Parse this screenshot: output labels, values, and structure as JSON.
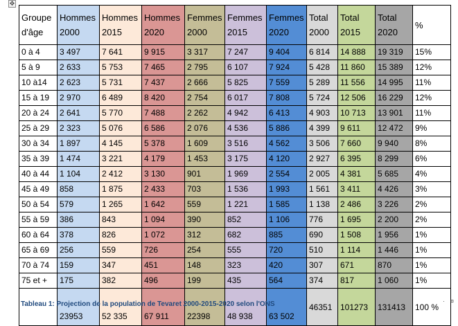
{
  "table": {
    "headers": [
      "Groupe d'âge",
      "Hommes 2000",
      "Hommes 2015",
      "Hommes 2020",
      "Femmes 2000",
      "Femmes 2015",
      "Femmes 2020",
      "Total 2000",
      "Total 2015",
      "Total 2020",
      "%"
    ],
    "column_colors": [
      "#ffffff",
      "#c5d9f1",
      "#fde9d9",
      "#da9694",
      "#c4bd97",
      "#ccc0da",
      "#538dd5",
      "#d9d9d9",
      "#c4d79b",
      "#a6a6a6",
      "#ffffff"
    ],
    "rows": [
      [
        "0 à 4",
        "3 497",
        "7 641",
        "9 915",
        "3 317",
        "7 247",
        "9 404",
        "6 814",
        "14 888",
        "19 319",
        "15%"
      ],
      [
        "5 à 9",
        "2 633",
        "5 753",
        "7 465",
        "2 795",
        "6 107",
        "7 924",
        "5 428",
        "11 860",
        "15 389",
        "12%"
      ],
      [
        "10 à14",
        "2 623",
        "5 731",
        "7 437",
        "2 666",
        "5 825",
        "7 559",
        "5 289",
        "11 556",
        "14 995",
        "11%"
      ],
      [
        "15 à 19",
        "2 970",
        "6 489",
        "8 420",
        "2 754",
        "6 017",
        "7 808",
        "5 724",
        "12 506",
        "16 229",
        "12%"
      ],
      [
        "20 à 24",
        "2 641",
        "5 770",
        "7 488",
        "2 262",
        "4 942",
        "6 413",
        "4 903",
        "10 713",
        "13 901",
        "11%"
      ],
      [
        "25 à 29",
        "2 323",
        "5 076",
        "6 586",
        "2 076",
        "4 536",
        "5 886",
        "4 399",
        "9 611",
        "12 472",
        "9%"
      ],
      [
        "30 à 34",
        "1 897",
        "4 145",
        "5 378",
        "1 609",
        "3 516",
        "4 562",
        "3 506",
        "7 660",
        "9 940",
        "8%"
      ],
      [
        "35 à 39",
        "1 474",
        "3 221",
        "4 179",
        "1 453",
        "3 175",
        "4 120",
        "2 927",
        "6 395",
        "8 299",
        "6%"
      ],
      [
        "40 à 44",
        "1 104",
        "2 412",
        "3 130",
        "901",
        "1 969",
        "2 554",
        "2 005",
        "4 381",
        "5 685",
        "4%"
      ],
      [
        "45 à 49",
        "858",
        "1 875",
        "2 433",
        "703",
        "1 536",
        "1 993",
        "1 561",
        "3 411",
        "4 426",
        "3%"
      ],
      [
        "50 à 54",
        "579",
        "1 265",
        "1 642",
        "559",
        "1 221",
        "1 585",
        "1 138",
        "2 486",
        "3 226",
        "2%"
      ],
      [
        "55 à 59",
        "386",
        "843",
        "1 094",
        "390",
        "852",
        "1 106",
        "776",
        "1 695",
        "2 200",
        "2%"
      ],
      [
        "60 à 64",
        "378",
        "826",
        "1 072",
        "312",
        "682",
        "885",
        "690",
        "1 508",
        "1 956",
        "1%"
      ],
      [
        "65 à 69",
        "256",
        "559",
        "726",
        "254",
        "555",
        "720",
        "510",
        "1 114",
        "1 446",
        "1%"
      ],
      [
        "70 à 74",
        "159",
        "347",
        "451",
        "148",
        "323",
        "420",
        "307",
        "671",
        "870",
        "1%"
      ],
      [
        "75 et +",
        "175",
        "382",
        "496",
        "199",
        "435",
        "564",
        "374",
        "817",
        "1 060",
        "1%"
      ]
    ],
    "totals": [
      "",
      "23953",
      "52 335",
      "67 911",
      "22398",
      "48 938",
      "63 502",
      "46351",
      "101273",
      "131413",
      "100 %"
    ]
  },
  "caption": "Tableau 1: Projection de la population  de Tevaret 2000-2015-2020 selon l'ONS"
}
